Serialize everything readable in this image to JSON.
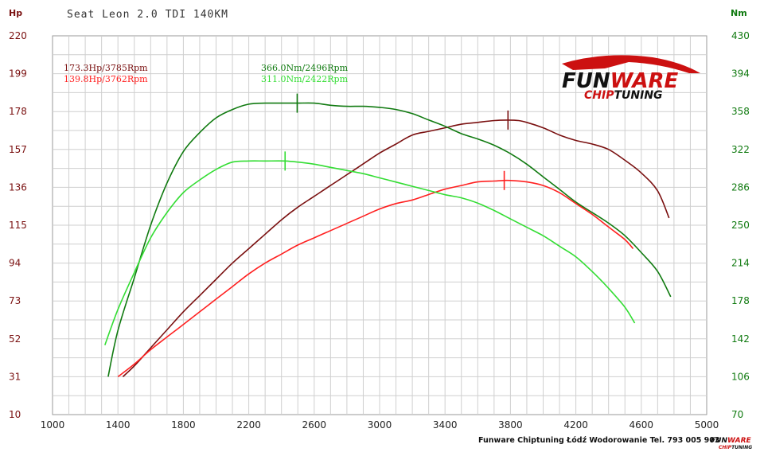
{
  "chart_data": {
    "type": "line",
    "title": "Seat Leon 2.0 TDI 140KM",
    "x_ticks": [
      1000,
      1400,
      1800,
      2200,
      2600,
      3000,
      3400,
      3800,
      4200,
      4600,
      5000
    ],
    "xlim": [
      1000,
      5000
    ],
    "y_left": {
      "unit": "Hp",
      "ticks": [
        10,
        31,
        52,
        73,
        94,
        115,
        136,
        157,
        178,
        199,
        220
      ],
      "ylim": [
        10,
        220
      ]
    },
    "y_right": {
      "unit": "Nm",
      "ticks": [
        70,
        106,
        142,
        178,
        214,
        250,
        286,
        322,
        358,
        394,
        430
      ],
      "ylim": [
        70,
        430
      ]
    },
    "grid": true,
    "peak_labels": [
      {
        "text": "173.3Hp/3785Rpm",
        "color": "#7a1010"
      },
      {
        "text": "139.8Hp/3762Rpm",
        "color": "#ff2020"
      },
      {
        "text": "366.0Nm/2496Rpm",
        "color": "#107a10"
      },
      {
        "text": "311.0Nm/2422Rpm",
        "color": "#33dd33"
      }
    ],
    "series": [
      {
        "axis": "left",
        "color": "#7a1010",
        "peak": [
          3785,
          173.3
        ],
        "x": [
          1430,
          1500,
          1600,
          1700,
          1800,
          1900,
          2000,
          2100,
          2200,
          2300,
          2400,
          2500,
          2600,
          2700,
          2800,
          2900,
          3000,
          3100,
          3200,
          3300,
          3400,
          3500,
          3600,
          3700,
          3785,
          3850,
          3900,
          4000,
          4100,
          4200,
          4300,
          4400,
          4500,
          4600,
          4700,
          4770
        ],
        "y": [
          31,
          37,
          47,
          57,
          67,
          76,
          85,
          94,
          102,
          110,
          118,
          125,
          131,
          137,
          143,
          149,
          155,
          160,
          165,
          167,
          169,
          171,
          172,
          173,
          173.3,
          173,
          172,
          169,
          165,
          162,
          160,
          157,
          151,
          144,
          134,
          119
        ]
      },
      {
        "axis": "left",
        "color": "#ff2020",
        "peak": [
          3762,
          139.8
        ],
        "x": [
          1400,
          1500,
          1600,
          1700,
          1800,
          1900,
          2000,
          2100,
          2200,
          2300,
          2400,
          2500,
          2600,
          2700,
          2800,
          2900,
          3000,
          3100,
          3200,
          3300,
          3400,
          3500,
          3600,
          3700,
          3762,
          3800,
          3900,
          4000,
          4100,
          4200,
          4300,
          4400,
          4500,
          4550
        ],
        "y": [
          31,
          38,
          46,
          53,
          60,
          67,
          74,
          81,
          88,
          94,
          99,
          104,
          108,
          112,
          116,
          120,
          124,
          127,
          129,
          132,
          135,
          137,
          139,
          139.5,
          139.8,
          139.8,
          139,
          137,
          133,
          127,
          121,
          114,
          107,
          102
        ]
      },
      {
        "axis": "right",
        "color": "#107a10",
        "peak": [
          2496,
          366.0
        ],
        "x": [
          1340,
          1400,
          1500,
          1600,
          1700,
          1800,
          1900,
          2000,
          2100,
          2200,
          2300,
          2400,
          2496,
          2600,
          2700,
          2800,
          2900,
          3000,
          3100,
          3200,
          3300,
          3400,
          3500,
          3600,
          3700,
          3800,
          3900,
          4000,
          4100,
          4200,
          4300,
          4400,
          4500,
          4600,
          4700,
          4780
        ],
        "y": [
          106,
          150,
          200,
          250,
          290,
          320,
          338,
          352,
          360,
          365,
          366,
          366,
          366,
          366,
          364,
          363,
          363,
          362,
          360,
          356,
          350,
          344,
          337,
          332,
          326,
          318,
          308,
          296,
          284,
          272,
          262,
          252,
          240,
          224,
          206,
          182
        ]
      },
      {
        "axis": "right",
        "color": "#33dd33",
        "peak": [
          2422,
          311.0
        ],
        "x": [
          1320,
          1400,
          1500,
          1600,
          1700,
          1800,
          1900,
          2000,
          2100,
          2200,
          2300,
          2422,
          2500,
          2600,
          2700,
          2800,
          2900,
          3000,
          3100,
          3200,
          3300,
          3400,
          3500,
          3600,
          3700,
          3800,
          3900,
          4000,
          4100,
          4200,
          4300,
          4400,
          4500,
          4560
        ],
        "y": [
          136,
          170,
          205,
          238,
          262,
          281,
          293,
          303,
          310,
          311,
          311,
          311,
          310,
          308,
          305,
          302,
          299,
          295,
          291,
          287,
          283,
          279,
          276,
          271,
          264,
          256,
          248,
          240,
          230,
          220,
          206,
          190,
          172,
          157
        ]
      }
    ],
    "footer": "Funware Chiptuning Łódź Wodorowanie Tel. 793 005 903",
    "logo": {
      "main_a": "FUN",
      "main_b": "WARE",
      "sub_a": "CHIP",
      "sub_b": "TUNING"
    }
  }
}
